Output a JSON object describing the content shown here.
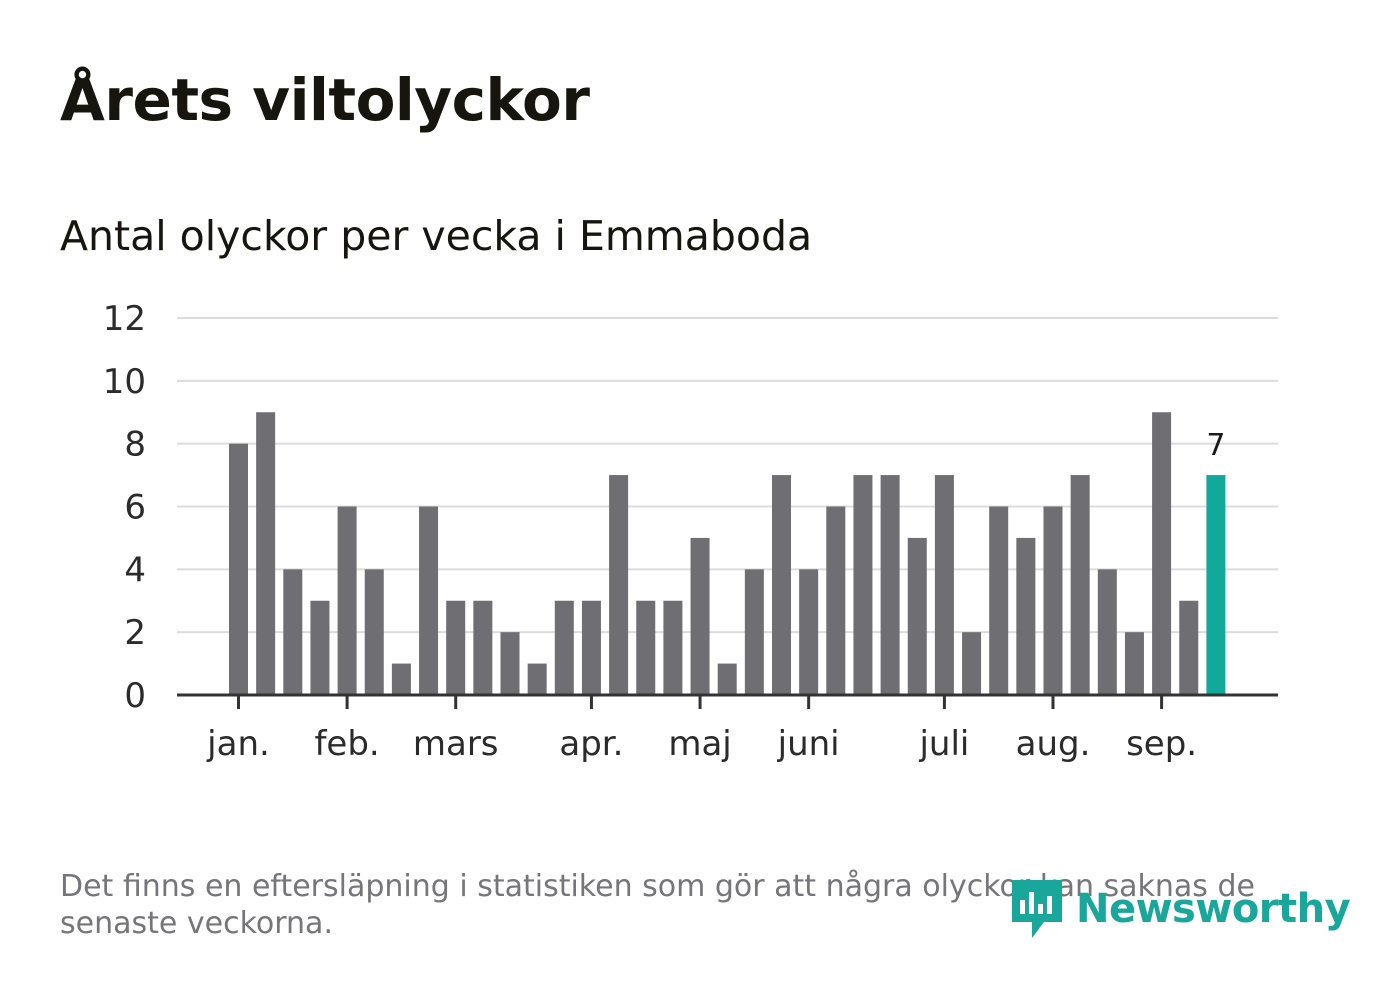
{
  "title": "Årets viltolyckor",
  "subtitle": "Antal olyckor per vecka i Emmaboda",
  "footnote": "Det finns en eftersläpning i statistiken som gör att några olyckor kan saknas de senaste veckorna.",
  "brand": {
    "name": "Newsworthy",
    "icon": "newsworthy-logo-icon",
    "color": "#1aa79b"
  },
  "colors": {
    "bar": "#6e6e73",
    "highlight": "#12a89a",
    "grid": "#dcdcdc",
    "axis": "#333333"
  },
  "chart_data": {
    "type": "bar",
    "categories": [
      "1",
      "2",
      "3",
      "4",
      "5",
      "6",
      "7",
      "8",
      "9",
      "10",
      "11",
      "12",
      "13",
      "14",
      "15",
      "16",
      "17",
      "18",
      "19",
      "20",
      "21",
      "22",
      "23",
      "24",
      "25",
      "26",
      "27",
      "28",
      "29",
      "30",
      "31",
      "32",
      "33",
      "34",
      "35",
      "36",
      "37"
    ],
    "values": [
      8,
      9,
      4,
      3,
      6,
      4,
      1,
      6,
      3,
      3,
      2,
      1,
      3,
      3,
      7,
      3,
      3,
      5,
      1,
      4,
      7,
      4,
      6,
      7,
      7,
      5,
      7,
      2,
      6,
      5,
      6,
      7,
      4,
      2,
      9,
      3,
      7
    ],
    "highlight_index": 36,
    "highlight_label": "7",
    "ylim": [
      0,
      12
    ],
    "yticks": [
      0,
      2,
      4,
      6,
      8,
      10,
      12
    ],
    "month_ticks": [
      {
        "label": "jan.",
        "week": 1
      },
      {
        "label": "feb.",
        "week": 5
      },
      {
        "label": "mars",
        "week": 9
      },
      {
        "label": "apr.",
        "week": 14
      },
      {
        "label": "maj",
        "week": 18
      },
      {
        "label": "juni",
        "week": 22
      },
      {
        "label": "juli",
        "week": 27
      },
      {
        "label": "aug.",
        "week": 31
      },
      {
        "label": "sep.",
        "week": 35
      }
    ],
    "grid": true,
    "legend": "none",
    "xlabel": "",
    "ylabel": ""
  }
}
